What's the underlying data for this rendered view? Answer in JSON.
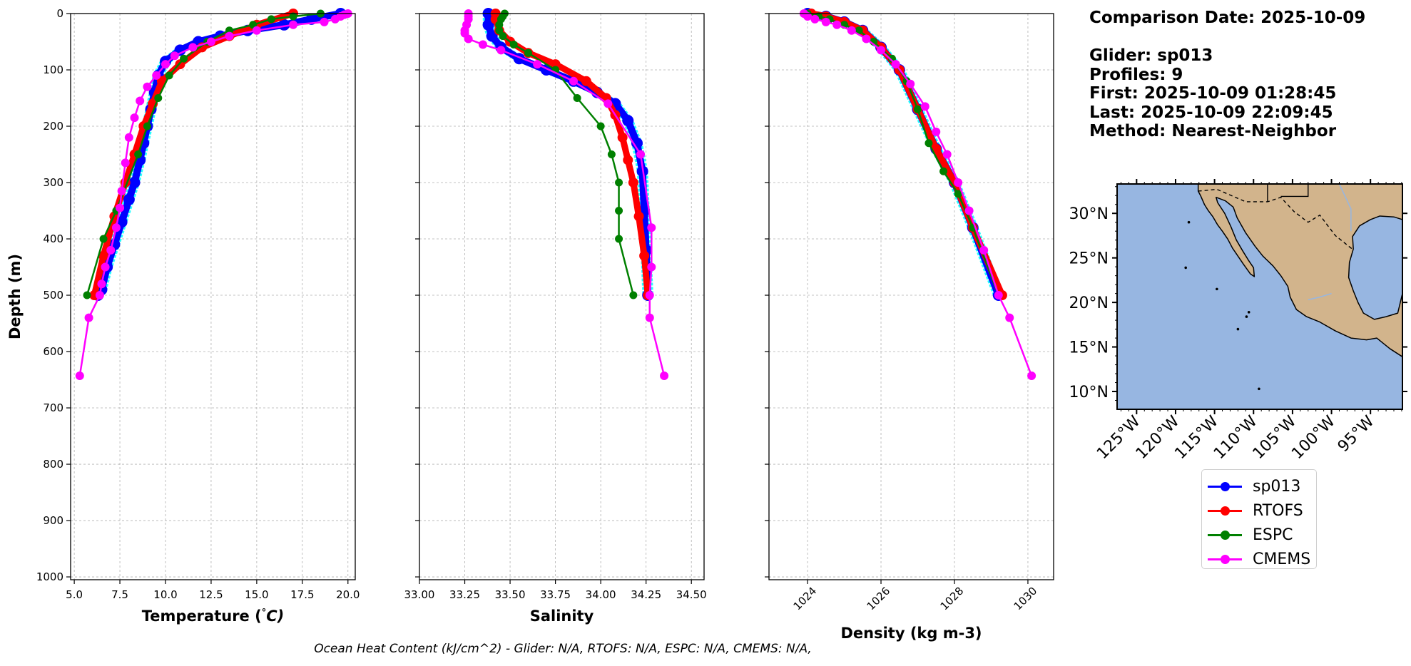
{
  "info": {
    "comparison_date": "Comparison Date: 2025-10-09",
    "glider": "Glider: sp013",
    "profiles": "Profiles: 9",
    "first": "First: 2025-10-09 01:28:45",
    "last": "Last: 2025-10-09 22:09:45",
    "method": "Method: Nearest-Neighbor"
  },
  "footer": "Ocean Heat Content (kJ/cm^2) - Glider: N/A,  RTOFS: N/A,  ESPC: N/A,  CMEMS: N/A,",
  "colors": {
    "sp013": "#0000ff",
    "glider_raw": "#00ffff",
    "RTOFS": "#ff0000",
    "ESPC": "#008000",
    "CMEMS": "#ff00ff",
    "ocean": "#97b6e1",
    "land": "#d2b48c",
    "grid": "#b0b0b0"
  },
  "legend": [
    {
      "label": "sp013",
      "color": "#0000ff"
    },
    {
      "label": "RTOFS",
      "color": "#ff0000"
    },
    {
      "label": "ESPC",
      "color": "#008000"
    },
    {
      "label": "CMEMS",
      "color": "#ff00ff"
    }
  ],
  "map": {
    "lat_ticks": [
      "30°N",
      "25°N",
      "20°N",
      "15°N",
      "10°N"
    ],
    "lon_ticks": [
      "125°W",
      "120°W",
      "115°W",
      "110°W",
      "105°W",
      "100°W",
      "95°W"
    ]
  },
  "chart_data": [
    {
      "type": "line",
      "xlabel": "Temperature (°C)",
      "ylabel": "Depth (m)",
      "xlim": [
        4.8,
        20.4
      ],
      "ylim": [
        1005,
        0
      ],
      "xticks": [
        "5.0",
        "7.5",
        "10.0",
        "12.5",
        "15.0",
        "17.5",
        "20.0"
      ],
      "yticks": [
        "0",
        "100",
        "200",
        "300",
        "400",
        "500",
        "600",
        "700",
        "800",
        "900",
        "1000"
      ],
      "grid": true,
      "series": [
        {
          "name": "sp013",
          "x": [
            19.6,
            18.0,
            16.5,
            14.5,
            13.0,
            11.8,
            10.8,
            10.0,
            9.6,
            9.4,
            9.2,
            9.0,
            8.8,
            8.6,
            8.3,
            8.0,
            7.6,
            7.2,
            6.8,
            6.5,
            6.3
          ],
          "y": [
            0,
            10,
            20,
            30,
            40,
            50,
            65,
            85,
            110,
            140,
            170,
            200,
            230,
            260,
            300,
            330,
            370,
            410,
            450,
            490,
            500
          ]
        },
        {
          "name": "RTOFS",
          "x": [
            17.0,
            15.0,
            13.5,
            12.0,
            10.8,
            9.8,
            9.3,
            8.8,
            8.3,
            7.8,
            7.2,
            6.6,
            6.1
          ],
          "y": [
            0,
            20,
            40,
            60,
            90,
            120,
            160,
            200,
            250,
            300,
            360,
            430,
            500
          ]
        },
        {
          "name": "ESPC",
          "x": [
            18.5,
            17.0,
            15.8,
            14.8,
            13.5,
            12.3,
            11.0,
            10.2,
            9.6,
            9.0,
            8.5,
            7.3,
            6.6,
            5.7
          ],
          "y": [
            0,
            5,
            10,
            20,
            30,
            50,
            80,
            110,
            150,
            200,
            250,
            350,
            400,
            500
          ]
        },
        {
          "name": "CMEMS",
          "x": [
            20.0,
            19.8,
            19.6,
            19.3,
            18.7,
            17.0,
            15.0,
            13.5,
            12.5,
            11.5,
            10.5,
            10.0,
            9.5,
            9.0,
            8.6,
            8.3,
            8.0,
            7.8,
            7.6,
            7.5,
            7.3,
            7.0,
            6.7,
            6.5,
            6.4,
            5.8,
            5.3
          ],
          "y": [
            0,
            2,
            5,
            10,
            15,
            20,
            30,
            40,
            50,
            60,
            75,
            90,
            110,
            130,
            155,
            185,
            220,
            265,
            315,
            345,
            380,
            420,
            450,
            480,
            500,
            540,
            643
          ]
        }
      ]
    },
    {
      "type": "line",
      "xlabel": "Salinity",
      "ylabel": "",
      "xlim": [
        33.0,
        34.57
      ],
      "ylim": [
        1005,
        0
      ],
      "xticks": [
        "33.00",
        "33.25",
        "33.50",
        "33.75",
        "34.00",
        "34.25",
        "34.50"
      ],
      "grid": true,
      "series": [
        {
          "name": "sp013",
          "x": [
            33.38,
            33.38,
            33.4,
            33.45,
            33.55,
            33.7,
            33.85,
            33.98,
            34.08,
            34.15,
            34.2,
            34.23,
            34.24,
            34.25,
            34.26
          ],
          "y": [
            0,
            20,
            40,
            60,
            80,
            100,
            120,
            140,
            160,
            190,
            230,
            280,
            350,
            420,
            500
          ]
        },
        {
          "name": "RTOFS",
          "x": [
            33.42,
            33.42,
            33.44,
            33.5,
            33.6,
            33.75,
            33.92,
            34.03,
            34.08,
            34.12,
            34.15,
            34.18,
            34.21,
            34.24,
            34.26
          ],
          "y": [
            0,
            10,
            30,
            50,
            70,
            90,
            120,
            150,
            180,
            220,
            260,
            300,
            360,
            430,
            500
          ]
        },
        {
          "name": "ESPC",
          "x": [
            33.47,
            33.46,
            33.45,
            33.44,
            33.44,
            33.46,
            33.52,
            33.6,
            33.75,
            33.87,
            34.0,
            34.06,
            34.1,
            34.1,
            34.1,
            34.18
          ],
          "y": [
            0,
            5,
            10,
            20,
            30,
            40,
            55,
            70,
            100,
            150,
            200,
            250,
            300,
            350,
            400,
            500
          ]
        },
        {
          "name": "CMEMS",
          "x": [
            33.27,
            33.27,
            33.27,
            33.26,
            33.25,
            33.25,
            33.27,
            33.35,
            33.45,
            33.65,
            33.85,
            34.04,
            34.22,
            34.28,
            34.28,
            34.27,
            34.27,
            34.35
          ],
          "y": [
            0,
            5,
            10,
            20,
            30,
            35,
            45,
            55,
            65,
            90,
            120,
            160,
            250,
            380,
            450,
            500,
            540,
            643
          ]
        }
      ]
    },
    {
      "type": "line",
      "xlabel": "Density (kg m-3)",
      "ylabel": "",
      "xlim": [
        1022.95,
        1030.7
      ],
      "ylim": [
        1005,
        0
      ],
      "xticks": [
        "1024",
        "1026",
        "1028",
        "1030"
      ],
      "grid": true,
      "series": [
        {
          "name": "sp013",
          "x": [
            1024.0,
            1024.5,
            1025.0,
            1025.5,
            1026.0,
            1026.5,
            1027.0,
            1027.5,
            1028.0,
            1028.5,
            1029.2
          ],
          "y": [
            0,
            5,
            15,
            30,
            60,
            100,
            170,
            240,
            300,
            380,
            500
          ]
        },
        {
          "name": "RTOFS",
          "x": [
            1024.1,
            1024.5,
            1025.0,
            1025.5,
            1026.0,
            1026.5,
            1027.0,
            1027.5,
            1028.0,
            1028.5,
            1029.3
          ],
          "y": [
            0,
            5,
            15,
            30,
            60,
            100,
            170,
            240,
            300,
            380,
            500
          ]
        },
        {
          "name": "ESPC",
          "x": [
            1024.0,
            1024.3,
            1024.6,
            1025.0,
            1025.4,
            1025.8,
            1026.3,
            1026.7,
            1027.0,
            1027.3,
            1027.7,
            1028.1,
            1028.5,
            1029.2
          ],
          "y": [
            0,
            5,
            10,
            20,
            30,
            50,
            80,
            120,
            170,
            230,
            280,
            320,
            380,
            500
          ]
        },
        {
          "name": "CMEMS",
          "x": [
            1023.9,
            1024.0,
            1024.2,
            1024.5,
            1024.8,
            1025.2,
            1025.6,
            1026.0,
            1026.4,
            1026.8,
            1027.2,
            1027.5,
            1027.8,
            1028.1,
            1028.4,
            1028.8,
            1029.2,
            1029.5,
            1030.1
          ],
          "y": [
            0,
            5,
            10,
            15,
            20,
            30,
            45,
            65,
            90,
            125,
            165,
            210,
            250,
            300,
            350,
            420,
            500,
            540,
            643
          ]
        }
      ]
    }
  ]
}
